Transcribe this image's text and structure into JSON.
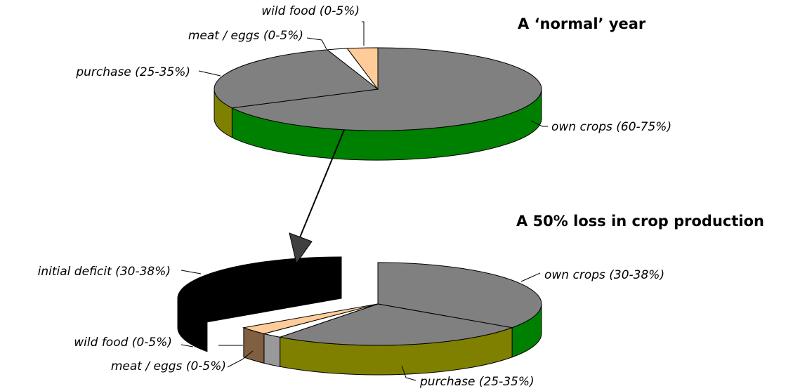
{
  "chart_data": [
    {
      "type": "pie",
      "title": "A ‘normal’ year",
      "slices": [
        {
          "label": "own crops (60-75%)",
          "value": 67.5,
          "color": "#808080",
          "side_color": "#008000"
        },
        {
          "label": "purchase (25-35%)",
          "value": 27.5,
          "color": "#808080",
          "side_color": "#808000"
        },
        {
          "label": "meat / eggs (0-5%)",
          "value": 2.0,
          "color": "#ffffff",
          "side_color": "#ffffff"
        },
        {
          "label": "wild food (0-5%)",
          "value": 3.0,
          "color": "#ffcc99",
          "side_color": "#ffcc99"
        }
      ]
    },
    {
      "type": "pie",
      "title": "A 50% loss in crop production",
      "slices": [
        {
          "label": "own crops (30-38%)",
          "value": 34,
          "color": "#808080",
          "side_color": "#008000"
        },
        {
          "label": "purchase (25-35%)",
          "value": 25,
          "color": "#808080",
          "side_color": "#808000"
        },
        {
          "label": "meat / eggs (0-5%)",
          "value": 2,
          "color": "#ffffff",
          "side_color": "#999999"
        },
        {
          "label": "wild food (0-5%)",
          "value": 3,
          "color": "#ffcc99",
          "side_color": "#806040"
        },
        {
          "label": "initial deficit (30-38%)",
          "value": 34,
          "color": "#000000",
          "side_color": "#000000"
        }
      ]
    }
  ]
}
